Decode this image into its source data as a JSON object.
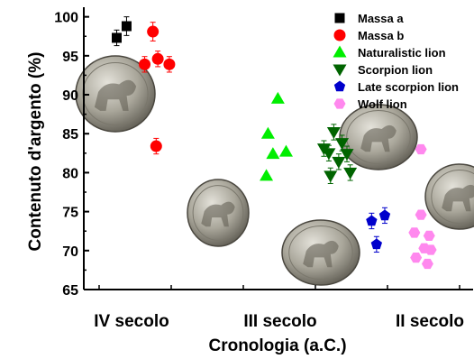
{
  "chart_data": {
    "type": "scatter",
    "ylabel": "Contenuto d'argento (%)",
    "xlabel": "Cronologia (a.C.)",
    "ylim": [
      65,
      101
    ],
    "yticks": [
      65,
      70,
      75,
      80,
      85,
      90,
      95,
      100
    ],
    "period_labels": [
      "IV secolo",
      "III secolo",
      "II secolo"
    ],
    "legend_position": "top-right",
    "grid": false,
    "series": [
      {
        "name": "Massa a",
        "marker": "square",
        "color": "#000000",
        "points": [
          {
            "x": 1.0,
            "y": 97.3,
            "err": 1.0
          },
          {
            "x": 1.3,
            "y": 98.8,
            "err": 1.2
          }
        ]
      },
      {
        "name": "Massa b",
        "marker": "circle",
        "color": "#ff0000",
        "points": [
          {
            "x": 2.1,
            "y": 98.1,
            "err": 1.2
          },
          {
            "x": 1.85,
            "y": 93.9,
            "err": 1.0
          },
          {
            "x": 2.25,
            "y": 94.6,
            "err": 1.0
          },
          {
            "x": 2.6,
            "y": 93.9,
            "err": 1.0
          },
          {
            "x": 2.2,
            "y": 83.4,
            "err": 1.0
          }
        ]
      },
      {
        "name": "Naturalistic lion",
        "marker": "triangle-up",
        "color": "#00ee00",
        "points": [
          {
            "x": 5.9,
            "y": 89.5,
            "err": 0
          },
          {
            "x": 5.6,
            "y": 85.0,
            "err": 0
          },
          {
            "x": 5.75,
            "y": 82.4,
            "err": 0
          },
          {
            "x": 6.15,
            "y": 82.7,
            "err": 0
          },
          {
            "x": 5.55,
            "y": 79.6,
            "err": 0
          }
        ]
      },
      {
        "name": "Scorpion lion",
        "marker": "triangle-down",
        "color": "#006400",
        "points": [
          {
            "x": 7.3,
            "y": 83.1,
            "err": 1.0
          },
          {
            "x": 7.45,
            "y": 82.5,
            "err": 1.0
          },
          {
            "x": 7.6,
            "y": 85.2,
            "err": 1.0
          },
          {
            "x": 7.75,
            "y": 81.4,
            "err": 1.0
          },
          {
            "x": 7.85,
            "y": 83.8,
            "err": 1.0
          },
          {
            "x": 8.0,
            "y": 82.4,
            "err": 1.0
          },
          {
            "x": 8.1,
            "y": 80.0,
            "err": 1.0
          },
          {
            "x": 7.5,
            "y": 79.6,
            "err": 1.0
          }
        ]
      },
      {
        "name": "Late scorpion lion",
        "marker": "pentagon",
        "color": "#0000cc",
        "points": [
          {
            "x": 8.75,
            "y": 73.8,
            "err": 1.0
          },
          {
            "x": 9.15,
            "y": 74.5,
            "err": 1.0
          },
          {
            "x": 8.9,
            "y": 70.8,
            "err": 1.0
          }
        ]
      },
      {
        "name": "Wolf lion",
        "marker": "hexagon",
        "color": "#ff88ee",
        "points": [
          {
            "x": 10.25,
            "y": 83.0,
            "err": 0
          },
          {
            "x": 10.25,
            "y": 74.6,
            "err": 0
          },
          {
            "x": 10.05,
            "y": 72.3,
            "err": 0
          },
          {
            "x": 10.5,
            "y": 71.9,
            "err": 0
          },
          {
            "x": 10.35,
            "y": 70.3,
            "err": 0
          },
          {
            "x": 10.55,
            "y": 70.1,
            "err": 0
          },
          {
            "x": 10.1,
            "y": 69.1,
            "err": 0
          },
          {
            "x": 10.45,
            "y": 68.3,
            "err": 0
          }
        ]
      }
    ]
  }
}
